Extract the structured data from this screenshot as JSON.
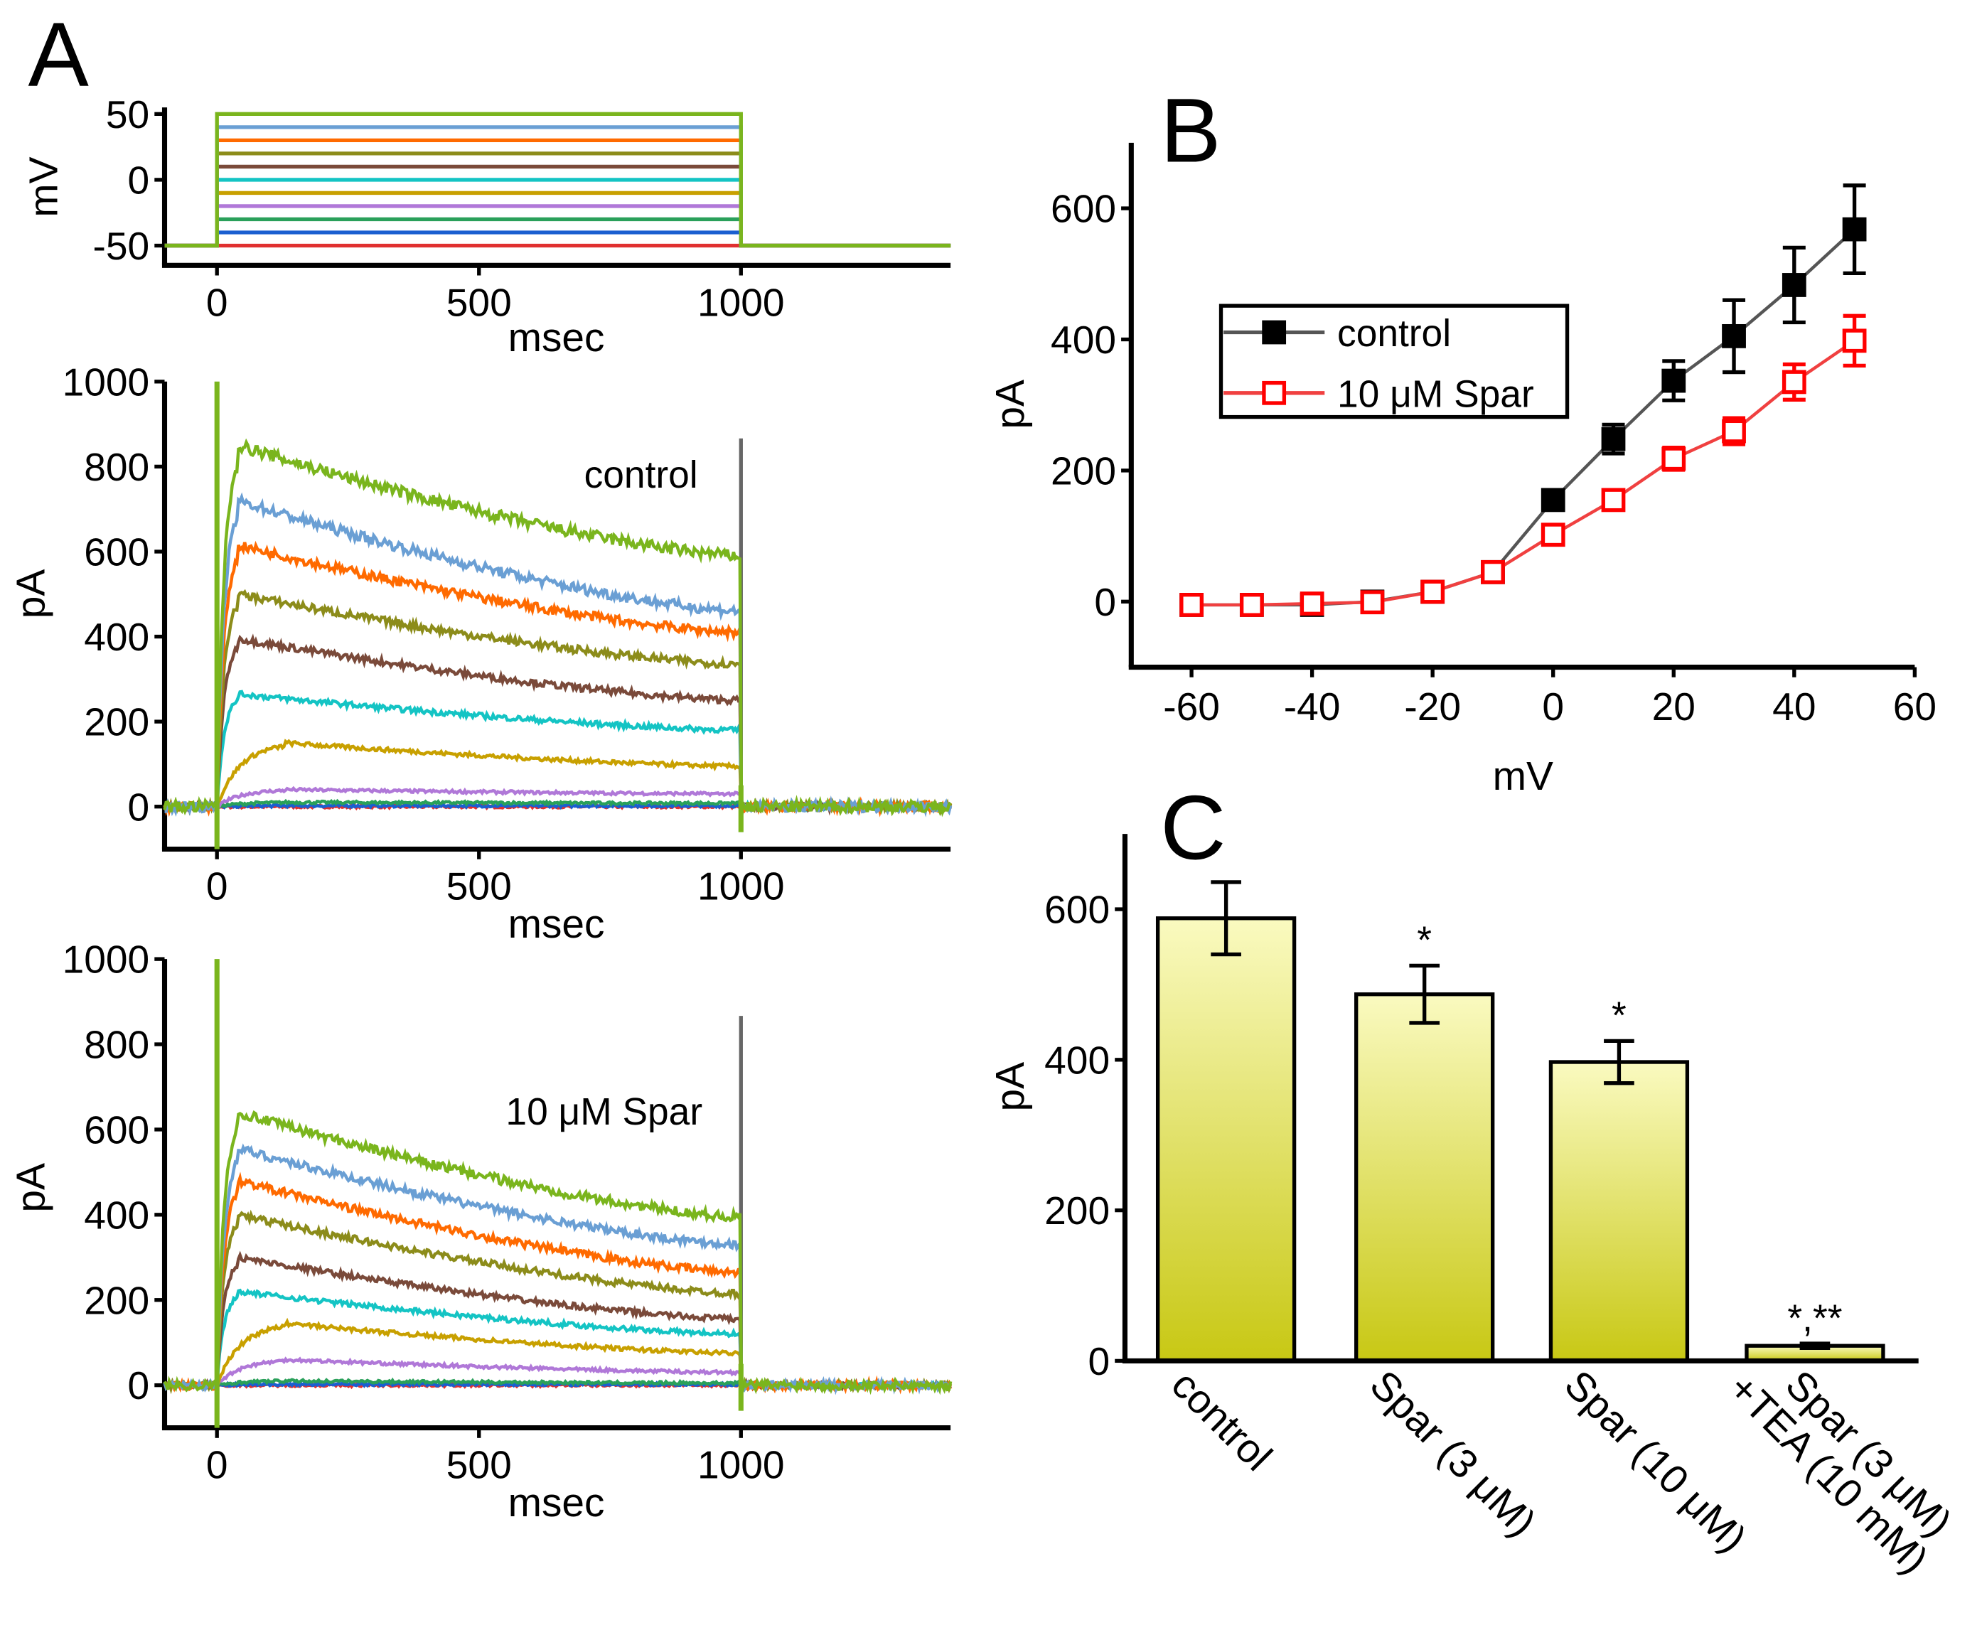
{
  "panel_labels": {
    "a": "A",
    "b": "B",
    "c": "C"
  },
  "chart_data": [
    {
      "id": "A-voltage",
      "type": "line",
      "xlabel": "msec",
      "ylabel": "mV",
      "xlim": [
        -100,
        1400
      ],
      "ylim": [
        -65,
        55
      ],
      "xticks": [
        0,
        500,
        1000
      ],
      "yticks": [
        -50,
        0,
        50
      ],
      "holding_mV": -50,
      "step_start_ms": 0,
      "step_end_ms": 1000,
      "steps_mV": [
        50,
        40,
        30,
        20,
        10,
        0,
        -10,
        -20,
        -30,
        -40,
        -50
      ],
      "colors": [
        "#7ab51d",
        "#6a9fd4",
        "#ff6a00",
        "#8c8c1a",
        "#7a4a3a",
        "#14c4c4",
        "#c8a000",
        "#b078d8",
        "#2aa05a",
        "#1a5fd0",
        "#e03030"
      ]
    },
    {
      "id": "A-control",
      "type": "line",
      "annotation": "control",
      "xlabel": "msec",
      "ylabel": "pA",
      "xlim": [
        -100,
        1400
      ],
      "ylim": [
        -100,
        1000
      ],
      "xticks": [
        0,
        500,
        1000
      ],
      "yticks": [
        0,
        200,
        400,
        600,
        800,
        1000
      ],
      "series": [
        {
          "step_mV": 50,
          "peak_pA": 850,
          "end_pA": 590
        },
        {
          "step_mV": 40,
          "peak_pA": 720,
          "end_pA": 460
        },
        {
          "step_mV": 30,
          "peak_pA": 615,
          "end_pA": 410
        },
        {
          "step_mV": 20,
          "peak_pA": 500,
          "end_pA": 335
        },
        {
          "step_mV": 10,
          "peak_pA": 395,
          "end_pA": 250
        },
        {
          "step_mV": 0,
          "peak_pA": 265,
          "end_pA": 180
        },
        {
          "step_mV": -10,
          "peak_pA": 150,
          "end_pA": 95
        },
        {
          "step_mV": -20,
          "peak_pA": 40,
          "end_pA": 30
        },
        {
          "step_mV": -30,
          "peak_pA": 10,
          "end_pA": 8
        },
        {
          "step_mV": -40,
          "peak_pA": 2,
          "end_pA": 2
        },
        {
          "step_mV": -50,
          "peak_pA": 0,
          "end_pA": 0
        }
      ]
    },
    {
      "id": "A-spar",
      "type": "line",
      "annotation": "10 μM Spar",
      "xlabel": "msec",
      "ylabel": "pA",
      "xlim": [
        -100,
        1400
      ],
      "ylim": [
        -100,
        1000
      ],
      "xticks": [
        0,
        500,
        1000
      ],
      "yticks": [
        0,
        200,
        400,
        600,
        800,
        1000
      ],
      "series": [
        {
          "step_mV": 50,
          "peak_pA": 640,
          "end_pA": 395
        },
        {
          "step_mV": 40,
          "peak_pA": 555,
          "end_pA": 330
        },
        {
          "step_mV": 30,
          "peak_pA": 480,
          "end_pA": 265
        },
        {
          "step_mV": 20,
          "peak_pA": 400,
          "end_pA": 215
        },
        {
          "step_mV": 10,
          "peak_pA": 300,
          "end_pA": 155
        },
        {
          "step_mV": 0,
          "peak_pA": 220,
          "end_pA": 120
        },
        {
          "step_mV": -10,
          "peak_pA": 145,
          "end_pA": 75
        },
        {
          "step_mV": -20,
          "peak_pA": 60,
          "end_pA": 30
        },
        {
          "step_mV": -30,
          "peak_pA": 10,
          "end_pA": 5
        },
        {
          "step_mV": -40,
          "peak_pA": 2,
          "end_pA": 2
        },
        {
          "step_mV": -50,
          "peak_pA": 0,
          "end_pA": 0
        }
      ]
    },
    {
      "id": "B",
      "type": "line",
      "xlabel": "mV",
      "ylabel": "pA",
      "xlim": [
        -70,
        60
      ],
      "ylim": [
        -100,
        700
      ],
      "xticks": [
        -60,
        -40,
        -20,
        0,
        20,
        40,
        60
      ],
      "yticks": [
        0,
        200,
        400,
        600
      ],
      "legend_position": "upper-left",
      "x": [
        -60,
        -50,
        -40,
        -30,
        -20,
        -10,
        0,
        10,
        20,
        30,
        40,
        50
      ],
      "series": [
        {
          "name": "control",
          "color": "#000000",
          "marker": "filled-square",
          "values": [
            -5,
            -5,
            -5,
            0,
            15,
            45,
            155,
            248,
            337,
            405,
            483,
            568
          ],
          "errors": [
            3,
            3,
            5,
            3,
            8,
            8,
            12,
            22,
            30,
            55,
            57,
            67
          ]
        },
        {
          "name": "10 μM Spar",
          "color": "#ff0000",
          "marker": "open-square",
          "values": [
            -5,
            -5,
            -3,
            -1,
            15,
            45,
            102,
            155,
            218,
            260,
            335,
            398
          ],
          "errors": [
            3,
            3,
            3,
            3,
            5,
            6,
            12,
            14,
            17,
            20,
            27,
            38
          ]
        }
      ]
    },
    {
      "id": "C",
      "type": "bar",
      "ylabel": "pA",
      "ylim": [
        0,
        700
      ],
      "yticks": [
        0,
        200,
        400,
        600
      ],
      "categories": [
        [
          "control"
        ],
        [
          "Spar (3 μM)"
        ],
        [
          "Spar (10 μM)"
        ],
        [
          "Spar (3 μM)",
          "+TEA (10 mM)"
        ]
      ],
      "values": [
        588,
        487,
        397,
        20
      ],
      "errors": [
        48,
        38,
        28,
        3
      ],
      "significance": [
        "",
        "*",
        "*",
        "*,**"
      ],
      "bar_gradient": [
        "#fafac0",
        "#c8c814"
      ]
    }
  ]
}
